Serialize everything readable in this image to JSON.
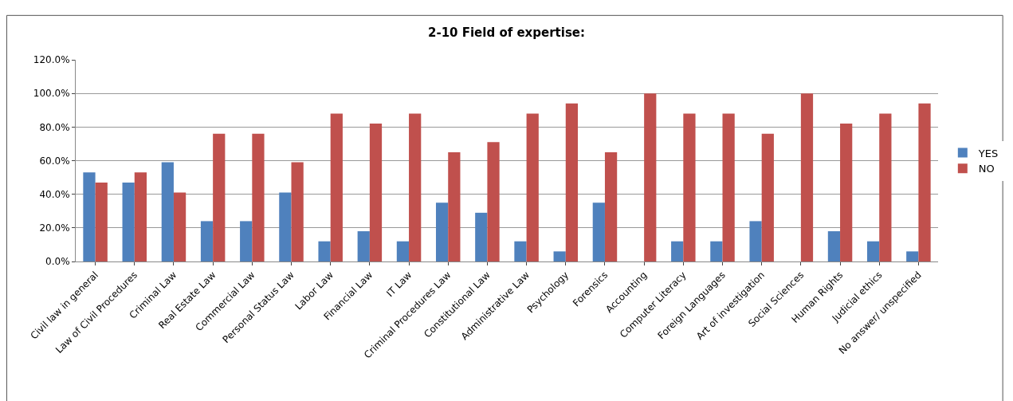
{
  "chart_data": {
    "type": "bar",
    "title": "2-10 Field of expertise:",
    "categories": [
      "Civil law in general",
      "Law of Civil Procedures",
      "Criminal Law",
      "Real Estate Law",
      "Commercial Law",
      "Personal Status Law",
      "Labor Law",
      "Financial Law",
      "IT Law",
      "Criminal Procedures Law",
      "Constitutional Law",
      "Administrative Law",
      "Psychology",
      "Forensics",
      "Accounting",
      "Computer Literacy",
      "Foreign Languages",
      "Art of investigation",
      "Social Sciences",
      "Human Rights",
      "Judicial ethics",
      "No answer/ unspecified"
    ],
    "series": [
      {
        "name": "YES",
        "color": "#4f81bd",
        "values": [
          53,
          47,
          59,
          24,
          24,
          41,
          12,
          18,
          12,
          35,
          29,
          12,
          6,
          35,
          0,
          12,
          12,
          24,
          0,
          18,
          12,
          6
        ]
      },
      {
        "name": "NO",
        "color": "#c0504d",
        "values": [
          47,
          53,
          41,
          76,
          76,
          59,
          88,
          82,
          88,
          65,
          71,
          88,
          94,
          65,
          100,
          88,
          88,
          76,
          100,
          82,
          88,
          94
        ]
      }
    ],
    "ylim": [
      0,
      120
    ],
    "yticks": [
      {
        "value": 0,
        "label": "0.0%"
      },
      {
        "value": 20,
        "label": "20.0%"
      },
      {
        "value": 40,
        "label": "40.0%"
      },
      {
        "value": 60,
        "label": "60.0%"
      },
      {
        "value": 80,
        "label": "80.0%"
      },
      {
        "value": 100,
        "label": "100.0%"
      },
      {
        "value": 120,
        "label": "120.0%"
      }
    ],
    "grid": "y",
    "legend": "right"
  }
}
